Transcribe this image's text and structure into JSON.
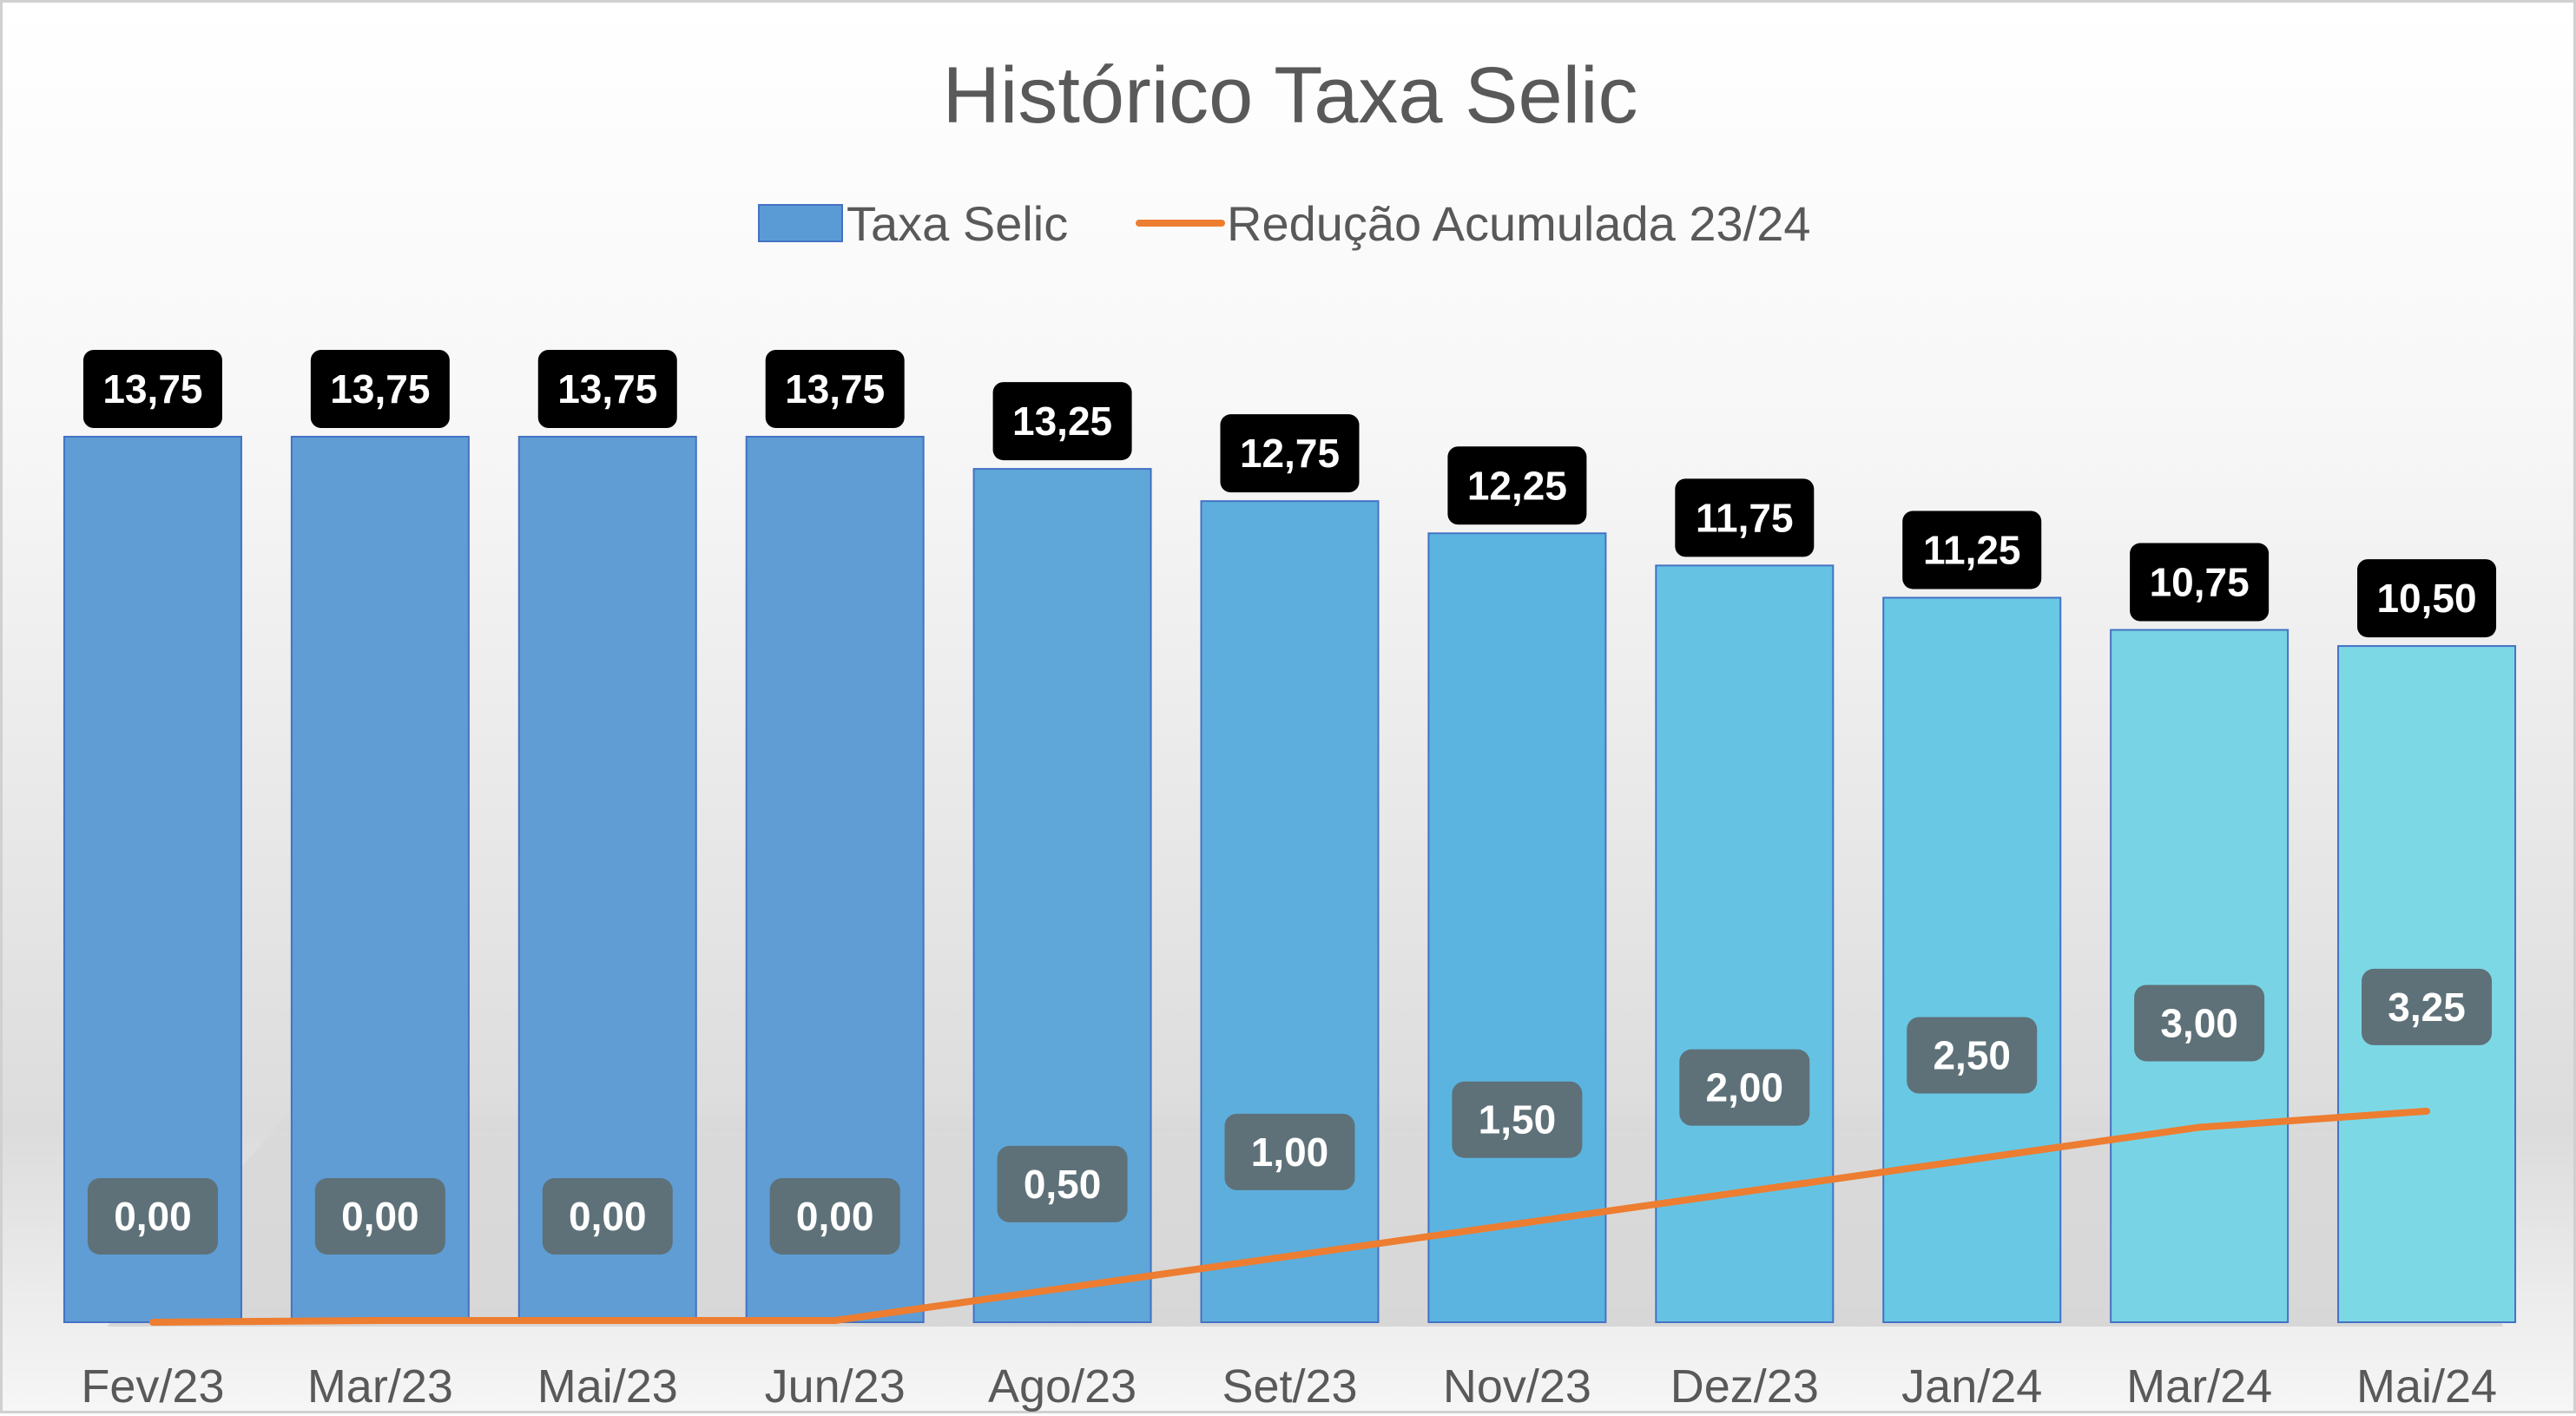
{
  "chart_data": {
    "type": "bar",
    "title": "Histórico Taxa Selic",
    "categories": [
      "Fev/23",
      "Mar/23",
      "Mai/23",
      "Jun/23",
      "Ago/23",
      "Set/23",
      "Nov/23",
      "Dez/23",
      "Jan/24",
      "Mar/24",
      "Mai/24"
    ],
    "series": [
      {
        "name": "Taxa Selic",
        "type": "bar",
        "color": "#5B9BD5",
        "values": [
          13.75,
          13.75,
          13.75,
          13.75,
          13.25,
          12.75,
          12.25,
          11.75,
          11.25,
          10.75,
          10.5
        ],
        "labels": [
          "13,75",
          "13,75",
          "13,75",
          "13,75",
          "13,25",
          "12,75",
          "12,25",
          "11,75",
          "11,25",
          "10,75",
          "10,50"
        ]
      },
      {
        "name": "Redução Acumulada 23/24",
        "type": "line",
        "color": "#ED7D31",
        "values": [
          0.0,
          0.0,
          0.0,
          0.0,
          0.5,
          1.0,
          1.5,
          2.0,
          2.5,
          3.0,
          3.25
        ],
        "labels": [
          "0,00",
          "0,00",
          "0,00",
          "0,00",
          "0,50",
          "1,00",
          "1,50",
          "2,00",
          "2,50",
          "3,00",
          "3,25"
        ]
      }
    ],
    "ylim": [
      0,
      13.75
    ],
    "grid": false,
    "legend_position": "top"
  }
}
